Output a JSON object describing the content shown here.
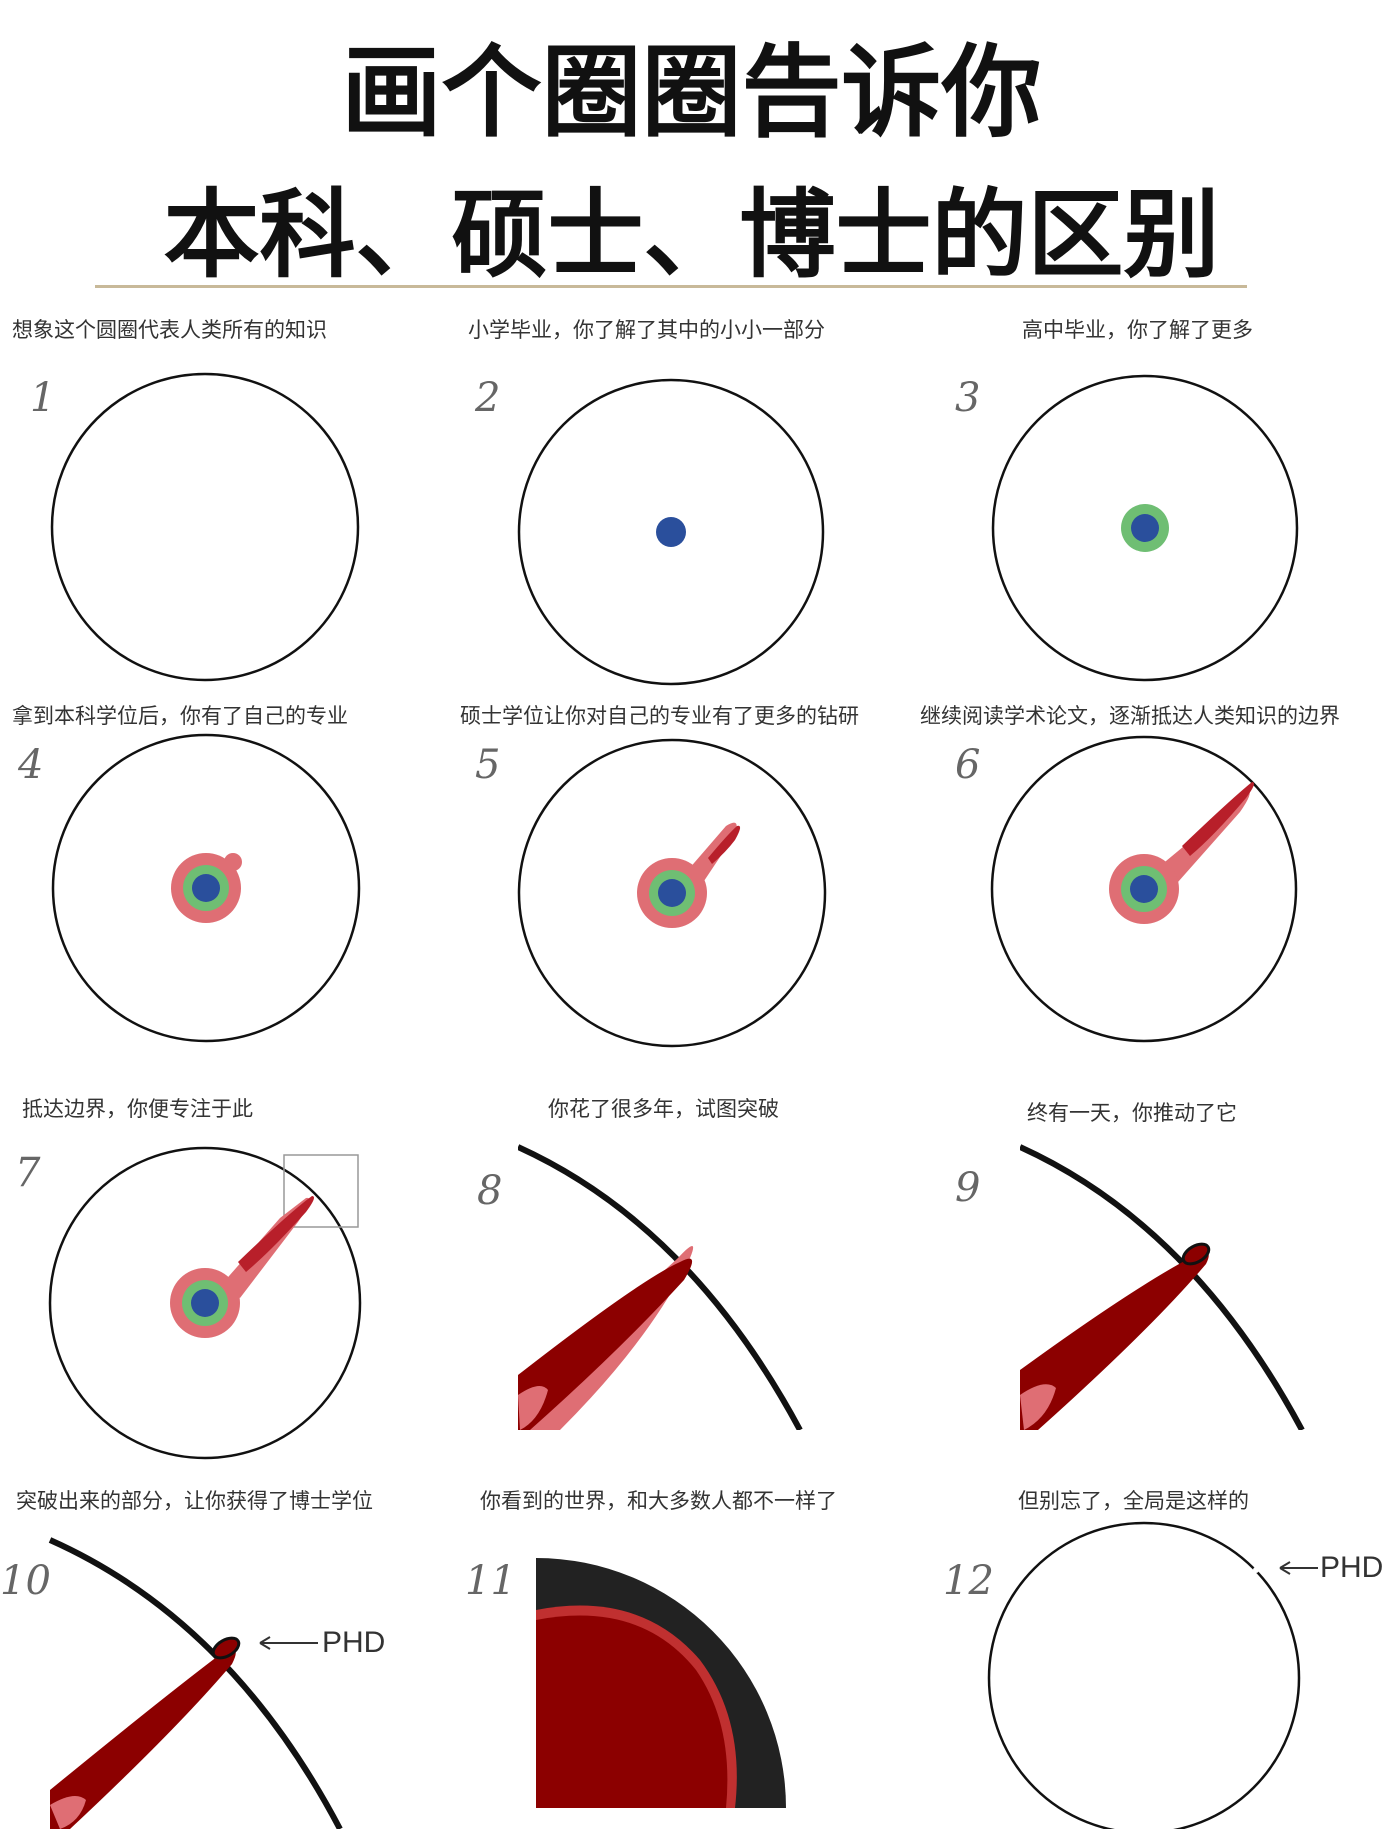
{
  "header": {
    "title_line1": "画个圈圈告诉你",
    "title_line2": "本科、硕士、博士的区别"
  },
  "panels": [
    {
      "number": "1",
      "caption": "想象这个圆圈代表人类所有的知识"
    },
    {
      "number": "2",
      "caption": "小学毕业，你了解了其中的小小一部分"
    },
    {
      "number": "3",
      "caption": "高中毕业，你了解了更多"
    },
    {
      "number": "4",
      "caption": "拿到本科学位后，你有了自己的专业"
    },
    {
      "number": "5",
      "caption": "硕士学位让你对自己的专业有了更多的钻研"
    },
    {
      "number": "6",
      "caption": "继续阅读学术论文，逐渐抵达人类知识的边界"
    },
    {
      "number": "7",
      "caption": "抵达边界，你便专注于此"
    },
    {
      "number": "8",
      "caption": "你花了很多年，试图突破"
    },
    {
      "number": "9",
      "caption": "终有一天，你推动了它"
    },
    {
      "number": "10",
      "caption": "突破出来的部分，让你获得了博士学位"
    },
    {
      "number": "11",
      "caption": "你看到的世界，和大多数人都不一样了"
    },
    {
      "number": "12",
      "caption": "但别忘了，全局是这样的"
    }
  ],
  "labels": {
    "phd": "PHD"
  },
  "colors": {
    "elementary_blue": "#2a4f9c",
    "highschool_green": "#6fbe73",
    "bachelor_pink": "#df6e74",
    "master_red": "#b81f2a",
    "phd_darkred": "#8c0000",
    "outline": "#111111"
  }
}
